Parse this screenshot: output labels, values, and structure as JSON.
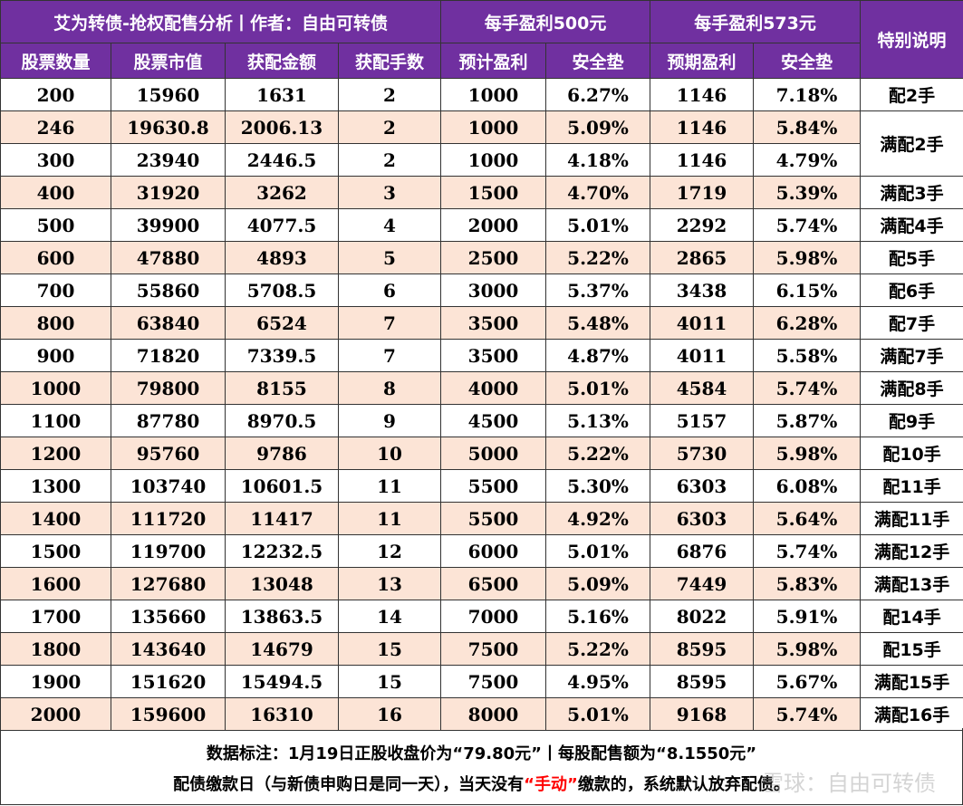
{
  "header": {
    "title": "艾为转债-抢权配售分析丨作者：自由可转债",
    "group_500": "每手盈利500元",
    "group_573": "每手盈利573元",
    "special_note": "特别说明",
    "columns": [
      "股票数量",
      "股票市值",
      "获配金额",
      "获配手数",
      "预计盈利",
      "安全垫",
      "预期盈利",
      "安全垫"
    ]
  },
  "rows": [
    {
      "shares": "200",
      "market_value": "15960",
      "allot_amount": "1631",
      "lots": "2",
      "profit_500": "1000",
      "cushion_500": "6.27%",
      "profit_573": "1146",
      "cushion_573": "7.18%"
    },
    {
      "shares": "246",
      "market_value": "19630.8",
      "allot_amount": "2006.13",
      "lots": "2",
      "profit_500": "1000",
      "cushion_500": "5.09%",
      "profit_573": "1146",
      "cushion_573": "5.84%"
    },
    {
      "shares": "300",
      "market_value": "23940",
      "allot_amount": "2446.5",
      "lots": "2",
      "profit_500": "1000",
      "cushion_500": "4.18%",
      "profit_573": "1146",
      "cushion_573": "4.79%"
    },
    {
      "shares": "400",
      "market_value": "31920",
      "allot_amount": "3262",
      "lots": "3",
      "profit_500": "1500",
      "cushion_500": "4.70%",
      "profit_573": "1719",
      "cushion_573": "5.39%"
    },
    {
      "shares": "500",
      "market_value": "39900",
      "allot_amount": "4077.5",
      "lots": "4",
      "profit_500": "2000",
      "cushion_500": "5.01%",
      "profit_573": "2292",
      "cushion_573": "5.74%"
    },
    {
      "shares": "600",
      "market_value": "47880",
      "allot_amount": "4893",
      "lots": "5",
      "profit_500": "2500",
      "cushion_500": "5.22%",
      "profit_573": "2865",
      "cushion_573": "5.98%"
    },
    {
      "shares": "700",
      "market_value": "55860",
      "allot_amount": "5708.5",
      "lots": "6",
      "profit_500": "3000",
      "cushion_500": "5.37%",
      "profit_573": "3438",
      "cushion_573": "6.15%"
    },
    {
      "shares": "800",
      "market_value": "63840",
      "allot_amount": "6524",
      "lots": "7",
      "profit_500": "3500",
      "cushion_500": "5.48%",
      "profit_573": "4011",
      "cushion_573": "6.28%"
    },
    {
      "shares": "900",
      "market_value": "71820",
      "allot_amount": "7339.5",
      "lots": "7",
      "profit_500": "3500",
      "cushion_500": "4.87%",
      "profit_573": "4011",
      "cushion_573": "5.58%"
    },
    {
      "shares": "1000",
      "market_value": "79800",
      "allot_amount": "8155",
      "lots": "8",
      "profit_500": "4000",
      "cushion_500": "5.01%",
      "profit_573": "4584",
      "cushion_573": "5.74%"
    },
    {
      "shares": "1100",
      "market_value": "87780",
      "allot_amount": "8970.5",
      "lots": "9",
      "profit_500": "4500",
      "cushion_500": "5.13%",
      "profit_573": "5157",
      "cushion_573": "5.87%"
    },
    {
      "shares": "1200",
      "market_value": "95760",
      "allot_amount": "9786",
      "lots": "10",
      "profit_500": "5000",
      "cushion_500": "5.22%",
      "profit_573": "5730",
      "cushion_573": "5.98%"
    },
    {
      "shares": "1300",
      "market_value": "103740",
      "allot_amount": "10601.5",
      "lots": "11",
      "profit_500": "5500",
      "cushion_500": "5.30%",
      "profit_573": "6303",
      "cushion_573": "6.08%"
    },
    {
      "shares": "1400",
      "market_value": "111720",
      "allot_amount": "11417",
      "lots": "11",
      "profit_500": "5500",
      "cushion_500": "4.92%",
      "profit_573": "6303",
      "cushion_573": "5.64%"
    },
    {
      "shares": "1500",
      "market_value": "119700",
      "allot_amount": "12232.5",
      "lots": "12",
      "profit_500": "6000",
      "cushion_500": "5.01%",
      "profit_573": "6876",
      "cushion_573": "5.74%"
    },
    {
      "shares": "1600",
      "market_value": "127680",
      "allot_amount": "13048",
      "lots": "13",
      "profit_500": "6500",
      "cushion_500": "5.09%",
      "profit_573": "7449",
      "cushion_573": "5.83%"
    },
    {
      "shares": "1700",
      "market_value": "135660",
      "allot_amount": "13863.5",
      "lots": "14",
      "profit_500": "7000",
      "cushion_500": "5.16%",
      "profit_573": "8022",
      "cushion_573": "5.91%"
    },
    {
      "shares": "1800",
      "market_value": "143640",
      "allot_amount": "14679",
      "lots": "15",
      "profit_500": "7500",
      "cushion_500": "5.22%",
      "profit_573": "8595",
      "cushion_573": "5.98%"
    },
    {
      "shares": "1900",
      "market_value": "151620",
      "allot_amount": "15494.5",
      "lots": "15",
      "profit_500": "7500",
      "cushion_500": "4.95%",
      "profit_573": "8595",
      "cushion_573": "5.67%"
    },
    {
      "shares": "2000",
      "market_value": "159600",
      "allot_amount": "16310",
      "lots": "16",
      "profit_500": "8000",
      "cushion_500": "5.01%",
      "profit_573": "9168",
      "cushion_573": "5.74%"
    }
  ],
  "notes": [
    "配2手",
    "满配2手",
    "满配3手",
    "满配4手",
    "配5手",
    "配6手",
    "配7手",
    "满配7手",
    "满配8手",
    "配9手",
    "配10手",
    "配11手",
    "满配11手",
    "满配12手",
    "满配13手",
    "配14手",
    "配15手",
    "满配15手",
    "满配16手"
  ],
  "footer": {
    "line1": "数据标注：1月19日正股收盘价为“79.80元”丨每股配售额为“8.1550元”",
    "line2_before": "配债缴款日（与新债申购日是同一天），当天没有",
    "line2_highlight": "“手动”",
    "line2_after": "缴款的，系统默认放弃配债。",
    "highlight_color": "#ff0000"
  },
  "watermark": "雪球：自由可转债",
  "colors": {
    "header_bg": "#7030a0",
    "row_alt_bg": "#fce4d6",
    "header_text": "#ffffff"
  }
}
